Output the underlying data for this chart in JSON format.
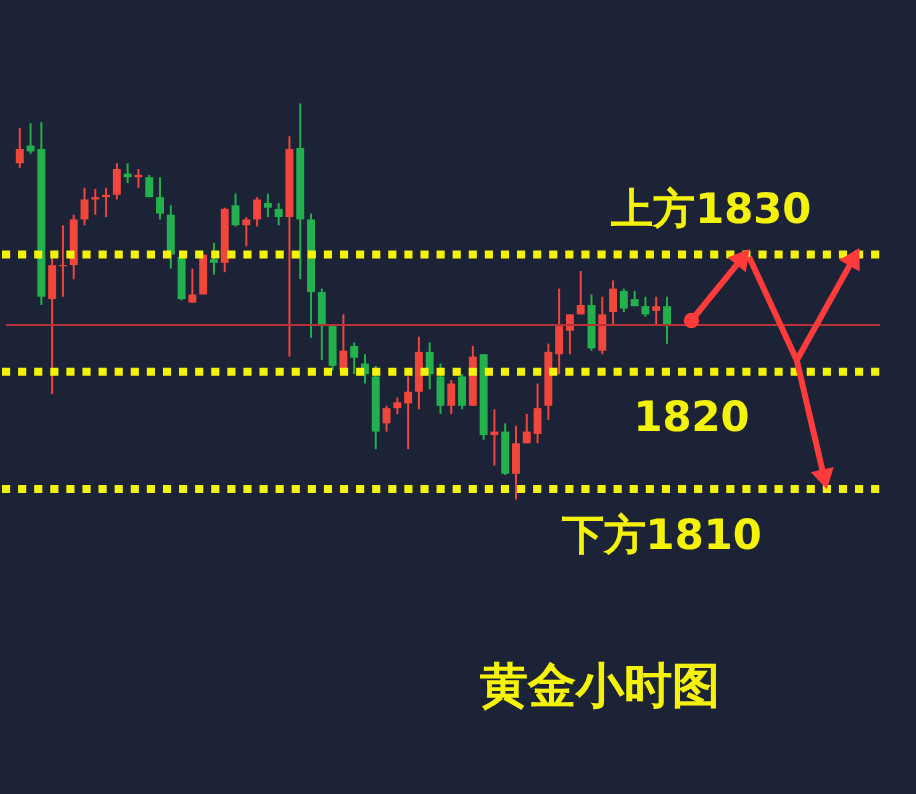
{
  "chart_data": {
    "type": "candlestick",
    "categories": [
      null,
      null,
      null,
      null,
      null,
      null,
      null,
      null,
      null,
      null,
      null,
      null,
      null,
      null,
      null,
      null,
      null,
      null,
      null,
      null,
      null,
      null,
      null,
      null,
      null,
      null,
      null,
      null,
      null,
      null,
      null,
      null,
      null,
      null,
      null,
      null,
      null,
      null,
      null,
      null,
      null,
      null,
      null,
      null,
      null,
      null,
      null,
      null,
      null,
      null,
      null,
      null,
      null,
      null,
      null,
      null,
      null,
      null,
      null,
      null,
      null
    ],
    "ohlc": [
      [
        1837.8,
        1840.8,
        1837.4,
        1839.0
      ],
      [
        1839.3,
        1841.2,
        1838.6,
        1838.8
      ],
      [
        1839.0,
        1841.3,
        1825.7,
        1826.4
      ],
      [
        1826.2,
        1830.0,
        1818.1,
        1829.1
      ],
      [
        1829.0,
        1832.5,
        1826.4,
        1829.1
      ],
      [
        1829.1,
        1833.4,
        1827.9,
        1833.0
      ],
      [
        1833.0,
        1835.7,
        1832.5,
        1834.7
      ],
      [
        1834.7,
        1835.6,
        1833.4,
        1834.9
      ],
      [
        1834.9,
        1835.7,
        1833.2,
        1835.1
      ],
      [
        1835.1,
        1837.8,
        1834.7,
        1837.3
      ],
      [
        1836.9,
        1837.8,
        1836.1,
        1836.6
      ],
      [
        1836.6,
        1837.3,
        1835.7,
        1836.8
      ],
      [
        1836.6,
        1836.8,
        1834.9,
        1834.9
      ],
      [
        1834.9,
        1836.6,
        1833.0,
        1833.5
      ],
      [
        1833.4,
        1834.2,
        1828.8,
        1830.0
      ],
      [
        1829.8,
        1830.0,
        1826.1,
        1826.2
      ],
      [
        1825.9,
        1828.8,
        1825.9,
        1826.6
      ],
      [
        1826.6,
        1830.0,
        1826.6,
        1830.0
      ],
      [
        1829.6,
        1831.0,
        1828.3,
        1829.3
      ],
      [
        1829.3,
        1834.0,
        1828.5,
        1833.9
      ],
      [
        1834.2,
        1835.2,
        1832.4,
        1832.5
      ],
      [
        1832.5,
        1833.2,
        1830.7,
        1833.0
      ],
      [
        1833.0,
        1834.9,
        1832.4,
        1834.7
      ],
      [
        1834.4,
        1835.2,
        1833.2,
        1834.0
      ],
      [
        1833.9,
        1834.4,
        1832.5,
        1833.2
      ],
      [
        1833.2,
        1840.1,
        1821.3,
        1839.0
      ],
      [
        1839.1,
        1842.9,
        1827.9,
        1833.0
      ],
      [
        1833.0,
        1833.5,
        1822.9,
        1826.8
      ],
      [
        1826.8,
        1827.1,
        1821.0,
        1823.9
      ],
      [
        1823.9,
        1824.0,
        1820.1,
        1820.5
      ],
      [
        1820.1,
        1824.9,
        1820.0,
        1821.8
      ],
      [
        1822.2,
        1822.5,
        1819.8,
        1821.2
      ],
      [
        1820.7,
        1821.5,
        1819.0,
        1819.8
      ],
      [
        1819.6,
        1820.5,
        1813.4,
        1814.9
      ],
      [
        1815.6,
        1817.1,
        1814.9,
        1816.9
      ],
      [
        1816.9,
        1817.8,
        1816.4,
        1817.4
      ],
      [
        1817.3,
        1819.6,
        1813.4,
        1818.3
      ],
      [
        1818.3,
        1823.0,
        1816.8,
        1821.7
      ],
      [
        1821.7,
        1822.5,
        1818.5,
        1819.8
      ],
      [
        1819.6,
        1820.7,
        1816.4,
        1817.1
      ],
      [
        1817.1,
        1819.3,
        1816.4,
        1819.0
      ],
      [
        1819.6,
        1819.8,
        1816.8,
        1817.1
      ],
      [
        1817.1,
        1822.2,
        1817.1,
        1821.3
      ],
      [
        1821.5,
        1821.5,
        1814.2,
        1814.6
      ],
      [
        1814.6,
        1816.8,
        1812.0,
        1814.9
      ],
      [
        1814.9,
        1815.6,
        1811.2,
        1811.3
      ],
      [
        1811.3,
        1815.4,
        1809.1,
        1813.9
      ],
      [
        1813.9,
        1816.4,
        1813.9,
        1814.9
      ],
      [
        1814.7,
        1819.0,
        1813.9,
        1816.9
      ],
      [
        1817.1,
        1822.4,
        1815.9,
        1821.7
      ],
      [
        1821.5,
        1827.1,
        1819.8,
        1823.9
      ],
      [
        1823.5,
        1824.9,
        1821.5,
        1824.9
      ],
      [
        1824.9,
        1828.6,
        1824.9,
        1825.7
      ],
      [
        1825.7,
        1826.6,
        1821.8,
        1822.0
      ],
      [
        1821.8,
        1826.4,
        1821.5,
        1824.9
      ],
      [
        1825.1,
        1827.8,
        1823.9,
        1827.1
      ],
      [
        1826.9,
        1827.1,
        1825.1,
        1825.4
      ],
      [
        1826.2,
        1826.9,
        1825.6,
        1825.6
      ],
      [
        1825.6,
        1826.4,
        1824.7,
        1824.9
      ],
      [
        1825.2,
        1826.4,
        1823.9,
        1825.6
      ],
      [
        1825.6,
        1826.4,
        1822.4,
        1823.9
      ]
    ],
    "colors": [
      "#f0463c",
      "#22b14c",
      "#22b14c",
      "#f0463c",
      "#f0463c",
      "#f0463c",
      "#f0463c",
      "#f0463c",
      "#f0463c",
      "#f0463c",
      "#22b14c",
      "#f0463c",
      "#22b14c",
      "#22b14c",
      "#22b14c",
      "#22b14c",
      "#f0463c",
      "#f0463c",
      "#22b14c",
      "#f0463c",
      "#22b14c",
      "#f0463c",
      "#f0463c",
      "#22b14c",
      "#22b14c",
      "#f0463c",
      "#22b14c",
      "#22b14c",
      "#22b14c",
      "#22b14c",
      "#f0463c",
      "#22b14c",
      "#22b14c",
      "#22b14c",
      "#f0463c",
      "#f0463c",
      "#f0463c",
      "#f0463c",
      "#22b14c",
      "#22b14c",
      "#f0463c",
      "#22b14c",
      "#f0463c",
      "#22b14c",
      "#f0463c",
      "#22b14c",
      "#f0463c",
      "#f0463c",
      "#f0463c",
      "#f0463c",
      "#f0463c",
      "#f0463c",
      "#f0463c",
      "#22b14c",
      "#f0463c",
      "#f0463c",
      "#22b14c",
      "#22b14c",
      "#22b14c",
      "#f0463c",
      "#22b14c"
    ],
    "ylim": [
      1784.2,
      1851.5
    ],
    "tick_labels": false,
    "grid": false,
    "ref_lines": [
      {
        "axis": "y",
        "value": 1830,
        "label": "上方1830",
        "color": "#f5f20a",
        "line_style": "dotted"
      },
      {
        "axis": "y",
        "value": 1820,
        "label": "1820",
        "color": "#f5f20a",
        "line_style": "dotted"
      },
      {
        "axis": "y",
        "value": 1810,
        "label": "下方1810",
        "color": "#f5f20a",
        "line_style": "dotted"
      },
      {
        "axis": "y",
        "value": 1824,
        "color": "#b8323a",
        "line_style": "solid"
      }
    ],
    "annotations": [
      "黄金小时图"
    ]
  }
}
